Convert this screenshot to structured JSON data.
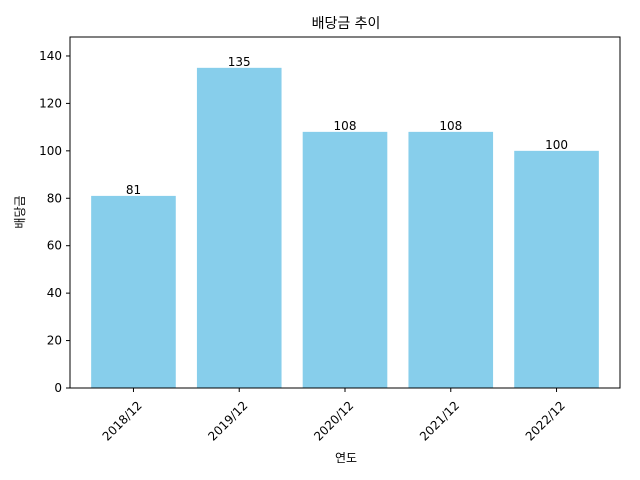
{
  "chart_data": {
    "type": "bar",
    "title": "배당금 추이",
    "xlabel": "연도",
    "ylabel": "배당금",
    "categories": [
      "2018/12",
      "2019/12",
      "2020/12",
      "2021/12",
      "2022/12"
    ],
    "values": [
      81,
      135,
      108,
      108,
      100
    ],
    "data_labels": [
      "81",
      "135",
      "108",
      "108",
      "100"
    ],
    "ylim": [
      0,
      148
    ],
    "yticks": [
      0,
      20,
      40,
      60,
      80,
      100,
      120,
      140
    ],
    "ytick_labels": [
      "0",
      "20",
      "40",
      "60",
      "80",
      "100",
      "120",
      "140"
    ],
    "bar_color": "#87CEEB",
    "grid": false,
    "legend": "none",
    "xtick_rotation_deg": 45
  }
}
